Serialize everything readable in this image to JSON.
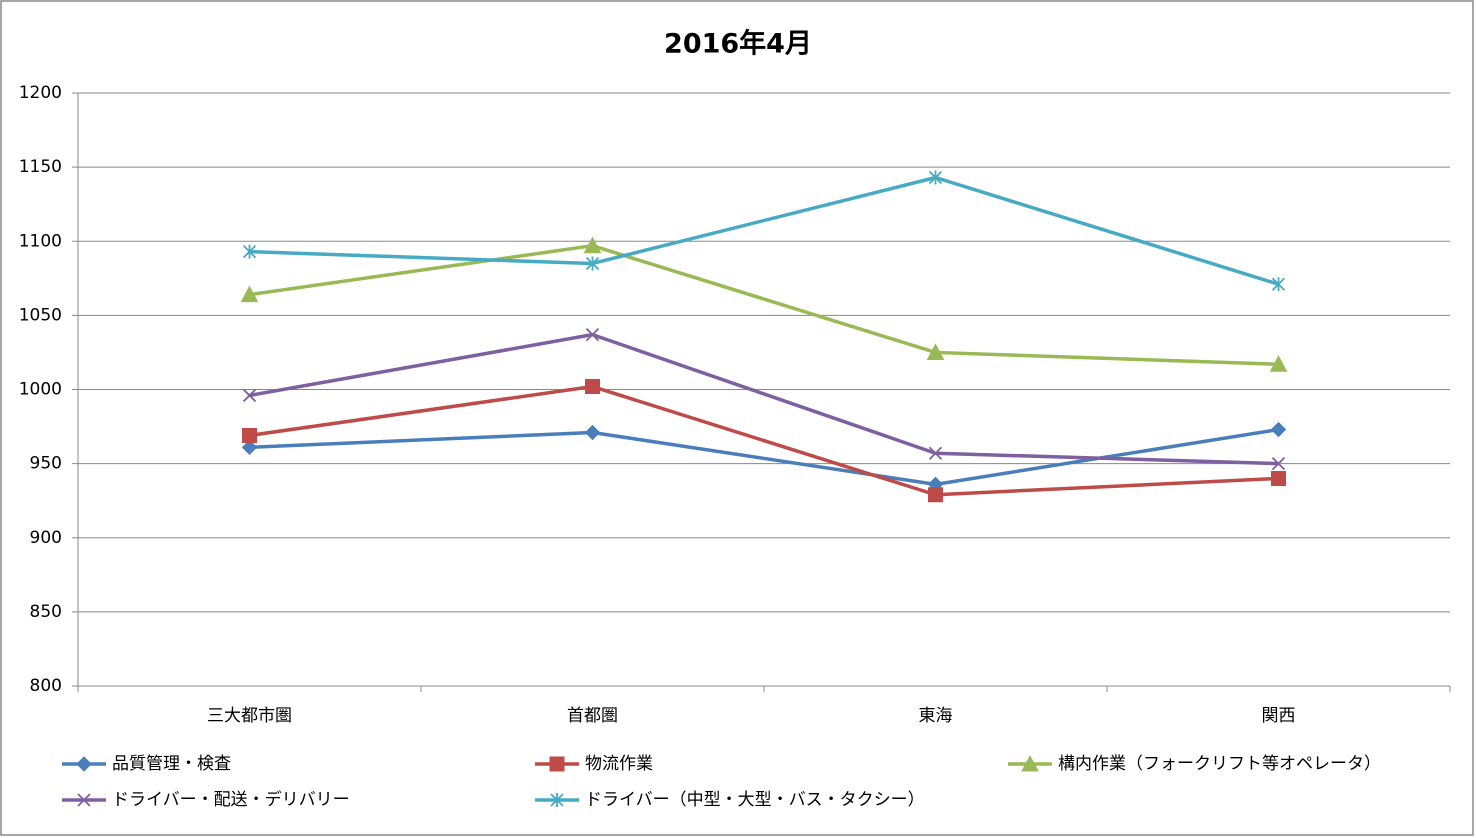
{
  "chart_data": {
    "type": "line",
    "title": "2016年4月",
    "categories": [
      "三大都市圏",
      "首都圏",
      "東海",
      "関西"
    ],
    "ylim": [
      800,
      1200
    ],
    "yticks": [
      800,
      850,
      900,
      950,
      1000,
      1050,
      1100,
      1150,
      1200
    ],
    "grid": true,
    "legend": "bottom",
    "series": [
      {
        "name": "品質管理・検査",
        "color": "#4a7ebb",
        "marker": "diamond",
        "values": [
          961,
          971,
          936,
          973
        ]
      },
      {
        "name": "物流作業",
        "color": "#be4b48",
        "marker": "square",
        "values": [
          969,
          1002,
          929,
          940
        ]
      },
      {
        "name": "構内作業（フォークリフト等オペレータ）",
        "color": "#98b954",
        "marker": "triangle",
        "values": [
          1064,
          1097,
          1025,
          1017
        ]
      },
      {
        "name": "ドライバー・配送・デリバリー",
        "color": "#7d60a0",
        "marker": "x",
        "values": [
          996,
          1037,
          957,
          950
        ]
      },
      {
        "name": "ドライバー（中型・大型・バス・タクシー）",
        "color": "#46aac5",
        "marker": "star",
        "values": [
          1093,
          1085,
          1143,
          1071
        ]
      }
    ]
  }
}
